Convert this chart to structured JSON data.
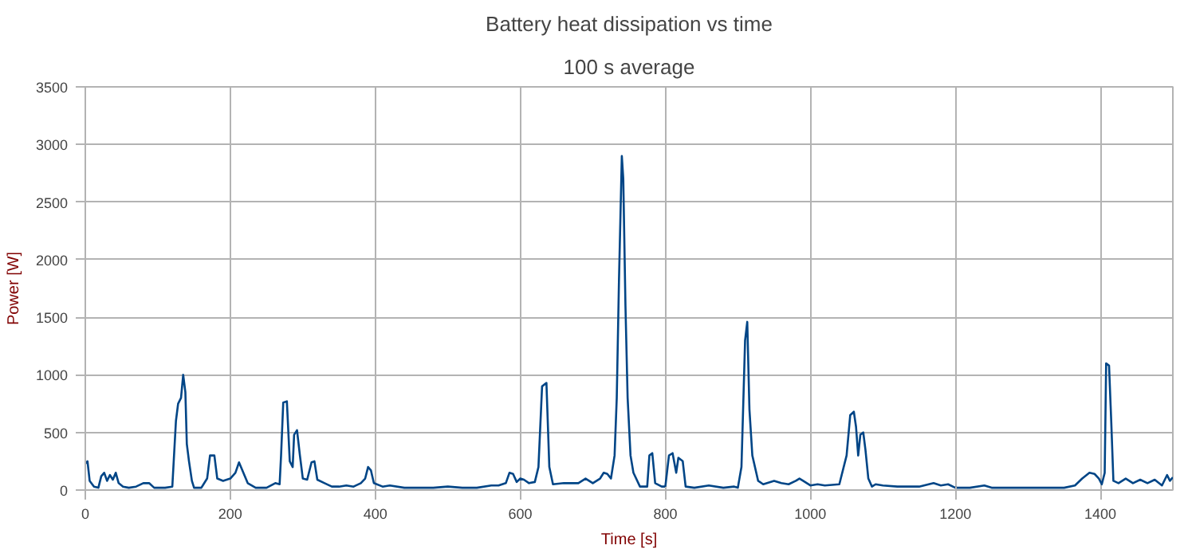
{
  "chart_data": {
    "type": "line",
    "title": "Battery heat dissipation vs time",
    "subtitle": "100 s average",
    "xlabel": "Time [s]",
    "ylabel": "Power [W]",
    "xlim": [
      0,
      1500
    ],
    "xticks": [
      0,
      200,
      400,
      600,
      800,
      1000,
      1200,
      1400
    ],
    "ylim": [
      0,
      3500
    ],
    "yticks": [
      0,
      500,
      1000,
      1500,
      2000,
      2500,
      3000,
      3500
    ],
    "grid": true,
    "marker": "none",
    "line_style": "solid",
    "series": [
      {
        "color": "#004586",
        "x": [
          0,
          3,
          6,
          12,
          18,
          22,
          26,
          30,
          34,
          38,
          42,
          46,
          52,
          60,
          70,
          80,
          88,
          95,
          110,
          120,
          125,
          128,
          132,
          135,
          138,
          140,
          143,
          147,
          150,
          160,
          168,
          172,
          178,
          182,
          190,
          200,
          207,
          212,
          218,
          224,
          235,
          250,
          262,
          268,
          270,
          273,
          278,
          282,
          286,
          288,
          292,
          296,
          300,
          306,
          312,
          316,
          320,
          330,
          340,
          350,
          360,
          370,
          380,
          386,
          390,
          394,
          398,
          410,
          420,
          440,
          460,
          480,
          500,
          520,
          540,
          560,
          570,
          580,
          585,
          590,
          595,
          600,
          605,
          612,
          620,
          625,
          630,
          636,
          640,
          645,
          660,
          680,
          690,
          700,
          710,
          715,
          720,
          725,
          730,
          733,
          736,
          740,
          742,
          745,
          748,
          752,
          756,
          765,
          775,
          778,
          782,
          786,
          795,
          800,
          805,
          810,
          815,
          818,
          824,
          828,
          840,
          860,
          880,
          895,
          900,
          905,
          910,
          913,
          916,
          920,
          928,
          935,
          950,
          960,
          970,
          980,
          985,
          990,
          1000,
          1010,
          1020,
          1040,
          1050,
          1055,
          1060,
          1063,
          1066,
          1069,
          1073,
          1076,
          1080,
          1085,
          1090,
          1100,
          1120,
          1150,
          1170,
          1180,
          1190,
          1200,
          1220,
          1240,
          1250,
          1300,
          1350,
          1365,
          1375,
          1385,
          1392,
          1398,
          1402,
          1406,
          1408,
          1412,
          1415,
          1418,
          1425,
          1435,
          1445,
          1455,
          1465,
          1475,
          1485,
          1492,
          1496,
          1500
        ],
        "values": [
          230,
          250,
          80,
          30,
          20,
          120,
          150,
          80,
          130,
          90,
          150,
          60,
          30,
          20,
          30,
          60,
          60,
          20,
          20,
          30,
          600,
          750,
          800,
          1000,
          850,
          400,
          250,
          80,
          20,
          20,
          100,
          300,
          300,
          100,
          80,
          100,
          150,
          240,
          150,
          60,
          20,
          20,
          60,
          50,
          300,
          760,
          770,
          250,
          200,
          480,
          520,
          300,
          100,
          90,
          240,
          250,
          90,
          60,
          30,
          30,
          40,
          30,
          60,
          100,
          200,
          170,
          60,
          30,
          40,
          20,
          20,
          20,
          30,
          20,
          20,
          40,
          40,
          60,
          150,
          140,
          70,
          100,
          90,
          60,
          70,
          200,
          900,
          930,
          200,
          50,
          60,
          60,
          100,
          60,
          100,
          150,
          140,
          100,
          300,
          800,
          1800,
          2900,
          2700,
          1600,
          800,
          300,
          150,
          30,
          30,
          300,
          320,
          60,
          30,
          30,
          300,
          320,
          150,
          280,
          250,
          30,
          20,
          40,
          20,
          30,
          20,
          200,
          1300,
          1460,
          700,
          300,
          80,
          50,
          80,
          60,
          50,
          80,
          100,
          80,
          40,
          50,
          40,
          50,
          300,
          650,
          680,
          550,
          300,
          480,
          500,
          350,
          100,
          30,
          50,
          40,
          30,
          30,
          60,
          40,
          50,
          20,
          20,
          40,
          20,
          20,
          20,
          40,
          100,
          150,
          140,
          100,
          50,
          150,
          1100,
          1080,
          600,
          80,
          60,
          100,
          60,
          90,
          60,
          90,
          40,
          130,
          80,
          110
        ]
      }
    ]
  }
}
